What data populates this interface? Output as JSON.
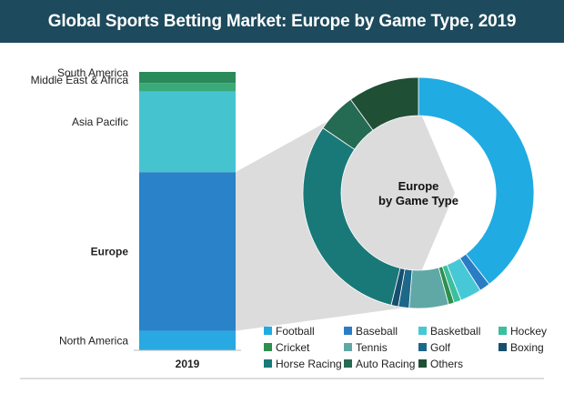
{
  "title": "Global Sports Betting Market: Europe by Game Type, 2019",
  "colors": {
    "title_bar": "#1d4a5c",
    "wedge_gray": "#d6d6d6",
    "axis_line": "#bbbbbb"
  },
  "chart_data": [
    {
      "type": "bar",
      "stacked": true,
      "categories": [
        "2019"
      ],
      "series": [
        {
          "name": "North America",
          "values": [
            7
          ],
          "color": "#29a9e1"
        },
        {
          "name": "Europe",
          "values": [
            57
          ],
          "color": "#2a83c9"
        },
        {
          "name": "Asia Pacific",
          "values": [
            29
          ],
          "color": "#45c4d0"
        },
        {
          "name": "Middle East & Africa",
          "values": [
            3
          ],
          "color": "#3aaa78"
        },
        {
          "name": "South America",
          "values": [
            4
          ],
          "color": "#2b8a5a"
        }
      ],
      "ylim": [
        0,
        100
      ]
    },
    {
      "type": "pie",
      "donut": true,
      "center_label": [
        "Europe",
        "by Game Type"
      ],
      "slices": [
        {
          "name": "Football",
          "value": 39.5,
          "color": "#20abe2"
        },
        {
          "name": "Baseball",
          "value": 1.5,
          "color": "#2a7dc4"
        },
        {
          "name": "Basketball",
          "value": 3.0,
          "color": "#47c8d6"
        },
        {
          "name": "Hockey",
          "value": 1.0,
          "color": "#3cbf9e"
        },
        {
          "name": "Cricket",
          "value": 0.8,
          "color": "#2e8f4e"
        },
        {
          "name": "Tennis",
          "value": 5.5,
          "color": "#5fa8a6"
        },
        {
          "name": "Golf",
          "value": 1.5,
          "color": "#1d6789"
        },
        {
          "name": "Boxing",
          "value": 1.0,
          "color": "#164f70"
        },
        {
          "name": "Horse Racing",
          "value": 30.7,
          "color": "#197978"
        },
        {
          "name": "Auto Racing",
          "value": 5.5,
          "color": "#256a52"
        },
        {
          "name": "Others",
          "value": 10.0,
          "color": "#1f4f35"
        }
      ],
      "legend_position": "bottom"
    }
  ]
}
